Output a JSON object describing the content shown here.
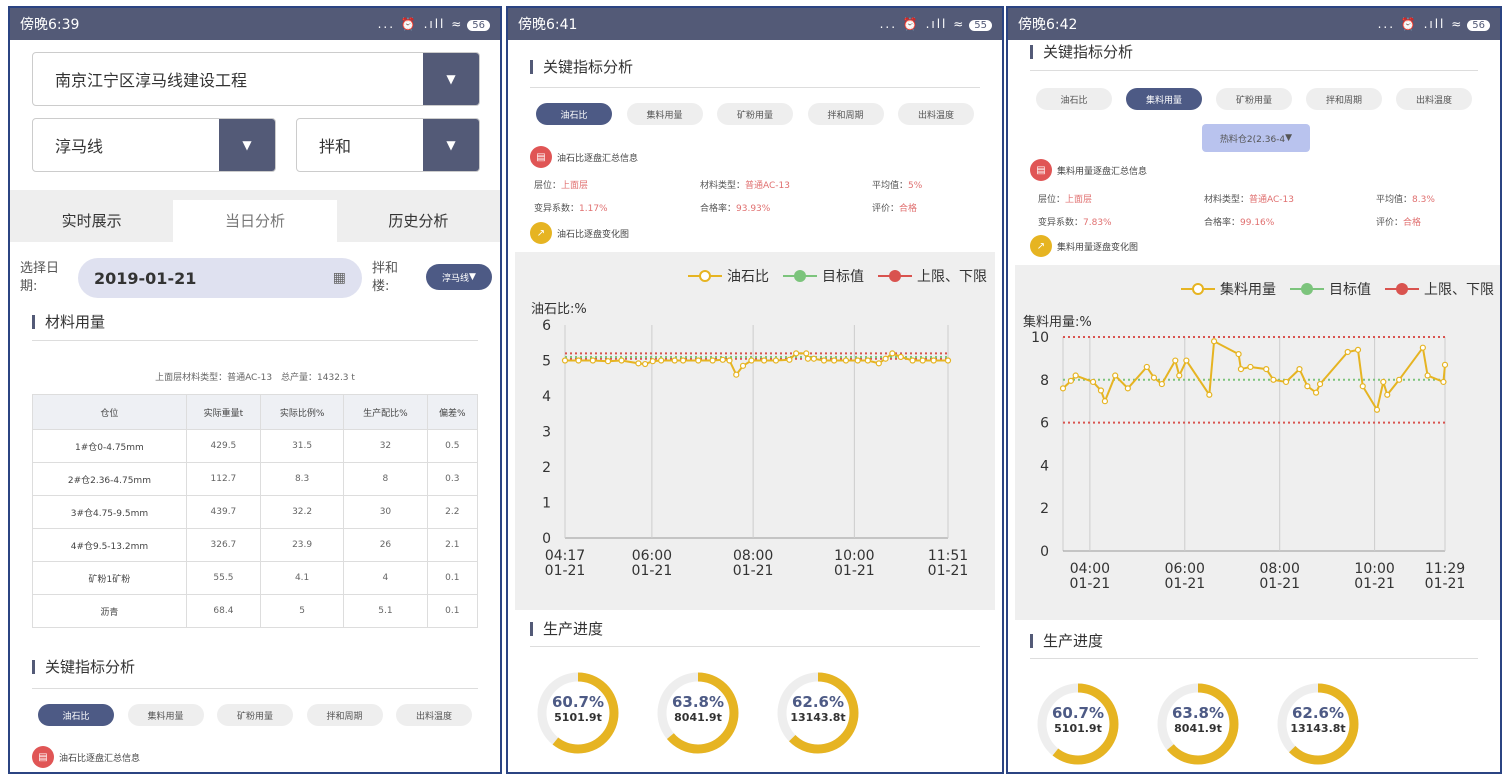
{
  "colors": {
    "accent": "#4d5a85",
    "status_bar": "#535a77",
    "series": "#e6b422",
    "target": "#7cc47c",
    "limits": "#d9534f",
    "border": "#2b4482"
  },
  "screens": [
    {
      "status": {
        "time": "傍晚6:39",
        "icons": "... ⏰ .ıll ≈",
        "battery": "56"
      },
      "project_select": {
        "value": "南京江宁区淳马线建设工程",
        "icon": "caret-down-icon"
      },
      "line_select": {
        "value": "淳马线"
      },
      "type_select": {
        "value": "拌和"
      },
      "tabs": [
        {
          "label": "实时展示",
          "active": false
        },
        {
          "label": "当日分析",
          "active": true
        },
        {
          "label": "历史分析",
          "active": false
        }
      ],
      "date_label": "选择日期:",
      "date_value": "2019-01-21",
      "plant_label": "拌和楼:",
      "plant_value": "淳马线",
      "material_title": "材料用量",
      "material_summary": "上面层材料类型：普通AC-13　总产量：1432.3 t",
      "table": {
        "headers": [
          "仓位",
          "实际重量t",
          "实际比例%",
          "生产配比%",
          "偏差%"
        ],
        "rows": [
          [
            "1#仓0-4.75mm",
            "429.5",
            "31.5",
            "32",
            "0.5"
          ],
          [
            "2#仓2.36-4.75mm",
            "112.7",
            "8.3",
            "8",
            "0.3"
          ],
          [
            "3#仓4.75-9.5mm",
            "439.7",
            "32.2",
            "30",
            "2.2"
          ],
          [
            "4#仓9.5-13.2mm",
            "326.7",
            "23.9",
            "26",
            "2.1"
          ],
          [
            "矿粉1矿粉",
            "55.5",
            "4.1",
            "4",
            "0.1"
          ],
          [
            "沥青",
            "68.4",
            "5",
            "5.1",
            "0.1"
          ]
        ]
      },
      "kpi_title": "关键指标分析",
      "pills": [
        {
          "label": "油石比",
          "active": true
        },
        {
          "label": "集料用量",
          "active": false
        },
        {
          "label": "矿粉用量",
          "active": false
        },
        {
          "label": "拌和周期",
          "active": false
        },
        {
          "label": "出料温度",
          "active": false
        }
      ],
      "summary_title": "油石比逐盘汇总信息"
    },
    {
      "status": {
        "time": "傍晚6:41",
        "icons": "... ⏰ .ıll ≈",
        "battery": "55"
      },
      "kpi_title": "关键指标分析",
      "pills": [
        {
          "label": "油石比",
          "active": true
        },
        {
          "label": "集料用量",
          "active": false
        },
        {
          "label": "矿粉用量",
          "active": false
        },
        {
          "label": "拌和周期",
          "active": false
        },
        {
          "label": "出料温度",
          "active": false
        }
      ],
      "summary_title": "油石比逐盘汇总信息",
      "info": [
        {
          "k": "层位：",
          "v": "上面层"
        },
        {
          "k": "材料类型：",
          "v": "普通AC-13"
        },
        {
          "k": "平均值：",
          "v": "5%"
        },
        {
          "k": "变异系数：",
          "v": "1.17%"
        },
        {
          "k": "合格率：",
          "v": "93.93%"
        },
        {
          "k": "评价：",
          "v": "合格"
        }
      ],
      "change_title": "油石比逐盘变化图",
      "progress_title": "生产进度",
      "progress": [
        {
          "percent": 60.7,
          "label": "60.7%",
          "weight": "5101.9t"
        },
        {
          "percent": 63.8,
          "label": "63.8%",
          "weight": "8041.9t"
        },
        {
          "percent": 62.6,
          "label": "62.6%",
          "weight": "13143.8t"
        }
      ]
    },
    {
      "status": {
        "time": "傍晚6:42",
        "icons": "... ⏰ .ıll ≈",
        "battery": "56"
      },
      "kpi_title": "关键指标分析",
      "pills": [
        {
          "label": "油石比",
          "active": false
        },
        {
          "label": "集料用量",
          "active": true
        },
        {
          "label": "矿粉用量",
          "active": false
        },
        {
          "label": "拌和周期",
          "active": false
        },
        {
          "label": "出料温度",
          "active": false
        }
      ],
      "bin_select": "热料仓2(2.36-4",
      "summary_title": "集料用量逐盘汇总信息",
      "info": [
        {
          "k": "层位：",
          "v": "上面层"
        },
        {
          "k": "材料类型：",
          "v": "普通AC-13"
        },
        {
          "k": "平均值：",
          "v": "8.3%"
        },
        {
          "k": "变异系数：",
          "v": "7.83%"
        },
        {
          "k": "合格率：",
          "v": "99.16%"
        },
        {
          "k": "评价：",
          "v": "合格"
        }
      ],
      "change_title": "集料用量逐盘变化图",
      "progress_title": "生产进度",
      "progress": [
        {
          "percent": 60.7,
          "label": "60.7%",
          "weight": "5101.9t"
        },
        {
          "percent": 63.8,
          "label": "63.8%",
          "weight": "8041.9t"
        },
        {
          "percent": 62.6,
          "label": "62.6%",
          "weight": "13143.8t"
        }
      ]
    }
  ],
  "chart_data": [
    {
      "type": "line",
      "ylabel": "油石比:%",
      "legend": [
        "油石比",
        "目标值",
        "上限、下限"
      ],
      "legend_placement": "top-right",
      "ylim": [
        0,
        6
      ],
      "yticks": [
        "0",
        "1",
        "2",
        "3",
        "4",
        "5",
        "6"
      ],
      "xrange": [
        "04:17",
        "11:51"
      ],
      "xticks": [
        {
          "t": "04:17",
          "l1": "04:17",
          "l2": "01-21"
        },
        {
          "t": "06:00",
          "l1": "06:00",
          "l2": "01-21"
        },
        {
          "t": "08:00",
          "l1": "08:00",
          "l2": "01-21"
        },
        {
          "t": "10:00",
          "l1": "10:00",
          "l2": "01-21"
        },
        {
          "t": "11:51",
          "l1": "11:51",
          "l2": "01-21"
        }
      ],
      "target": 5.1,
      "upper": 5.2,
      "lower": 5.05,
      "x": [
        "04:17",
        "04:33",
        "04:50",
        "05:08",
        "05:24",
        "05:44",
        "05:52",
        "06:01",
        "06:11",
        "06:27",
        "06:37",
        "06:55",
        "07:12",
        "07:24",
        "07:32",
        "07:40",
        "07:48",
        "07:58",
        "08:13",
        "08:27",
        "08:43",
        "08:51",
        "09:03",
        "09:05",
        "09:12",
        "09:24",
        "09:36",
        "09:50",
        "10:04",
        "10:16",
        "10:29",
        "10:37",
        "10:45",
        "10:55",
        "11:09",
        "11:21",
        "11:34",
        "11:51"
      ],
      "y": [
        5.0,
        5.0,
        5.0,
        4.98,
        5.0,
        4.92,
        4.9,
        4.98,
        5.0,
        5.0,
        5.0,
        5.0,
        5.0,
        5.02,
        5.0,
        4.6,
        4.85,
        5.0,
        5.0,
        5.0,
        5.02,
        5.2,
        5.2,
        5.05,
        5.05,
        5.0,
        5.0,
        5.0,
        5.0,
        5.0,
        4.92,
        5.05,
        5.2,
        5.1,
        5.0,
        5.0,
        5.0,
        5.0
      ]
    },
    {
      "type": "line",
      "ylabel": "集料用量:%",
      "legend": [
        "集料用量",
        "目标值",
        "上限、下限"
      ],
      "legend_placement": "top-right",
      "ylim": [
        0,
        10
      ],
      "yticks": [
        "0",
        "2",
        "4",
        "6",
        "8",
        "10"
      ],
      "xrange": [
        "03:26",
        "11:29"
      ],
      "xticks": [
        {
          "t": "04:00",
          "l1": "04:00",
          "l2": "01-21"
        },
        {
          "t": "06:00",
          "l1": "06:00",
          "l2": "01-21"
        },
        {
          "t": "08:00",
          "l1": "08:00",
          "l2": "01-21"
        },
        {
          "t": "10:00",
          "l1": "10:00",
          "l2": "01-21"
        },
        {
          "t": "11:29",
          "l1": "11:29",
          "l2": "01-21"
        }
      ],
      "target": 8,
      "upper": 10,
      "lower": 6,
      "x": [
        "03:26",
        "03:36",
        "03:42",
        "04:04",
        "04:14",
        "04:19",
        "04:32",
        "04:48",
        "05:12",
        "05:21",
        "05:31",
        "05:48",
        "05:53",
        "06:02",
        "06:31",
        "06:37",
        "07:08",
        "07:11",
        "07:23",
        "07:43",
        "07:52",
        "08:08",
        "08:25",
        "08:35",
        "08:46",
        "08:51",
        "09:26",
        "09:39",
        "09:45",
        "10:03",
        "10:11",
        "10:16",
        "10:31",
        "11:01",
        "11:07",
        "11:27",
        "11:29"
      ],
      "y": [
        7.6,
        7.95,
        8.2,
        7.9,
        7.5,
        7.0,
        8.2,
        7.6,
        8.6,
        8.1,
        7.8,
        8.9,
        8.2,
        8.9,
        7.3,
        9.8,
        9.2,
        8.5,
        8.6,
        8.5,
        8.0,
        7.9,
        8.5,
        7.7,
        7.4,
        7.8,
        9.3,
        9.4,
        7.7,
        6.6,
        7.9,
        7.3,
        8.0,
        9.5,
        8.2,
        7.9,
        8.7
      ]
    }
  ]
}
